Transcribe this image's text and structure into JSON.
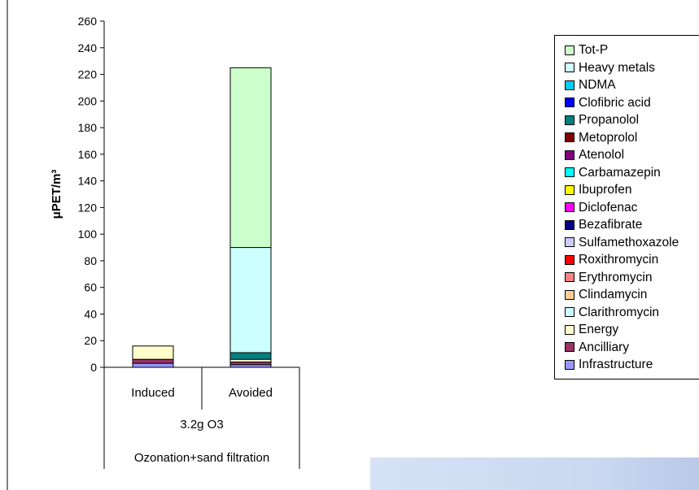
{
  "chart_data": {
    "type": "bar",
    "stacked": true,
    "categories": [
      "Induced",
      "Avoided"
    ],
    "group_label": "3.2g O3",
    "outer_label": "Ozonation+sand filtration",
    "ylabel": "μPET/m³",
    "ylim": [
      0,
      260
    ],
    "yticks": [
      0,
      20,
      40,
      60,
      80,
      100,
      120,
      140,
      160,
      180,
      200,
      220,
      240,
      260
    ],
    "grid": false,
    "legend_position": "right",
    "series": [
      {
        "name": "Infrastructure",
        "color": "#9999ff",
        "values": [
          3,
          2
        ]
      },
      {
        "name": "Ancilliary",
        "color": "#993366",
        "values": [
          3,
          2
        ]
      },
      {
        "name": "Energy",
        "color": "#ffffcc",
        "values": [
          10,
          2
        ]
      },
      {
        "name": "Clarithromycin",
        "color": "#ccffff",
        "values": [
          0,
          0
        ]
      },
      {
        "name": "Clindamycin",
        "color": "#ffcc99",
        "values": [
          0,
          0
        ]
      },
      {
        "name": "Erythromycin",
        "color": "#ff8080",
        "values": [
          0,
          0
        ]
      },
      {
        "name": "Roxithromycin",
        "color": "#ff0000",
        "values": [
          0,
          0
        ]
      },
      {
        "name": "Sulfamethoxazole",
        "color": "#ccccff",
        "values": [
          0,
          0
        ]
      },
      {
        "name": "Bezafibrate",
        "color": "#000080",
        "values": [
          0,
          0
        ]
      },
      {
        "name": "Diclofenac",
        "color": "#ff00ff",
        "values": [
          0,
          0
        ]
      },
      {
        "name": "Ibuprofen",
        "color": "#ffff00",
        "values": [
          0,
          0
        ]
      },
      {
        "name": "Carbamazepin",
        "color": "#00ffff",
        "values": [
          0,
          0
        ]
      },
      {
        "name": "Atenolol",
        "color": "#800080",
        "values": [
          0,
          0
        ]
      },
      {
        "name": "Metoprolol",
        "color": "#800000",
        "values": [
          0,
          0
        ]
      },
      {
        "name": "Propanolol",
        "color": "#008080",
        "values": [
          0,
          5
        ]
      },
      {
        "name": "Clofibric acid",
        "color": "#0000ff",
        "values": [
          0,
          0
        ]
      },
      {
        "name": "NDMA",
        "color": "#00ccff",
        "values": [
          0,
          0
        ]
      },
      {
        "name": "Heavy metals",
        "color": "#ccffff",
        "values": [
          0,
          79
        ]
      },
      {
        "name": "Tot-P",
        "color": "#ccffcc",
        "values": [
          0,
          135
        ]
      }
    ]
  }
}
